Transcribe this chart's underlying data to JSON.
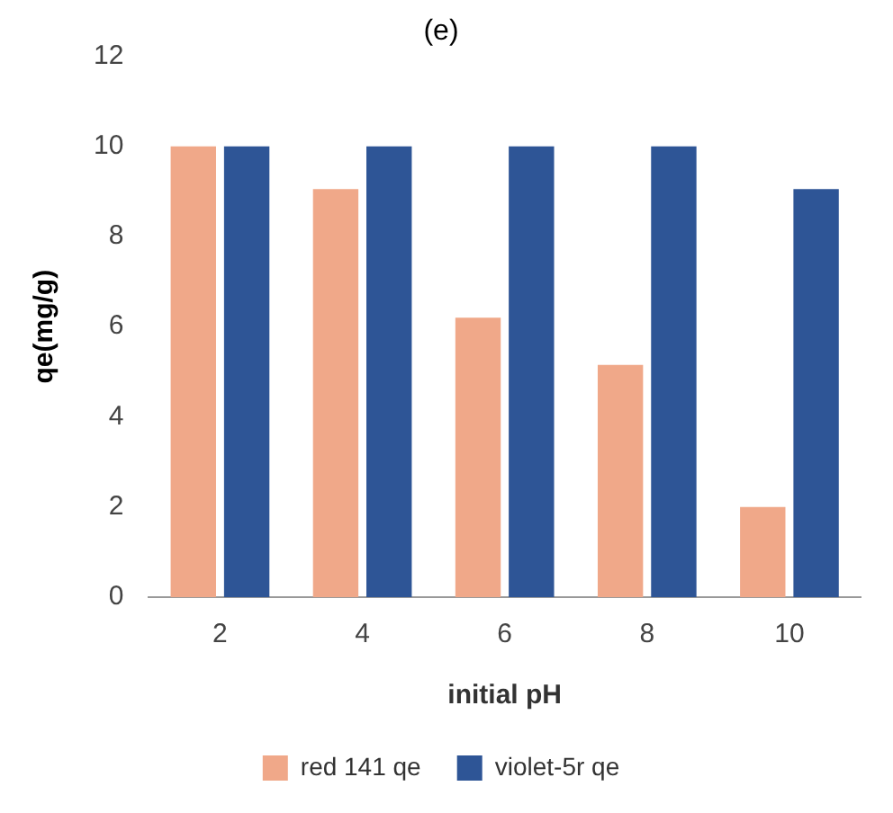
{
  "chart_data": {
    "type": "bar",
    "title": "(e)",
    "xlabel": "initial pH",
    "ylabel": "qe(mg/g)",
    "categories": [
      "2",
      "4",
      "6",
      "8",
      "10"
    ],
    "series": [
      {
        "name": "red 141 qe",
        "color": "#f0a889",
        "values": [
          10,
          9.05,
          6.2,
          5.15,
          2.0
        ]
      },
      {
        "name": "violet-5r qe",
        "color": "#2e5596",
        "values": [
          10,
          10,
          10,
          10,
          9.05
        ]
      }
    ],
    "ylim": [
      0,
      12
    ],
    "yticks": [
      0,
      2,
      4,
      6,
      8,
      10,
      12
    ],
    "grid": false,
    "legend": "bottom"
  }
}
